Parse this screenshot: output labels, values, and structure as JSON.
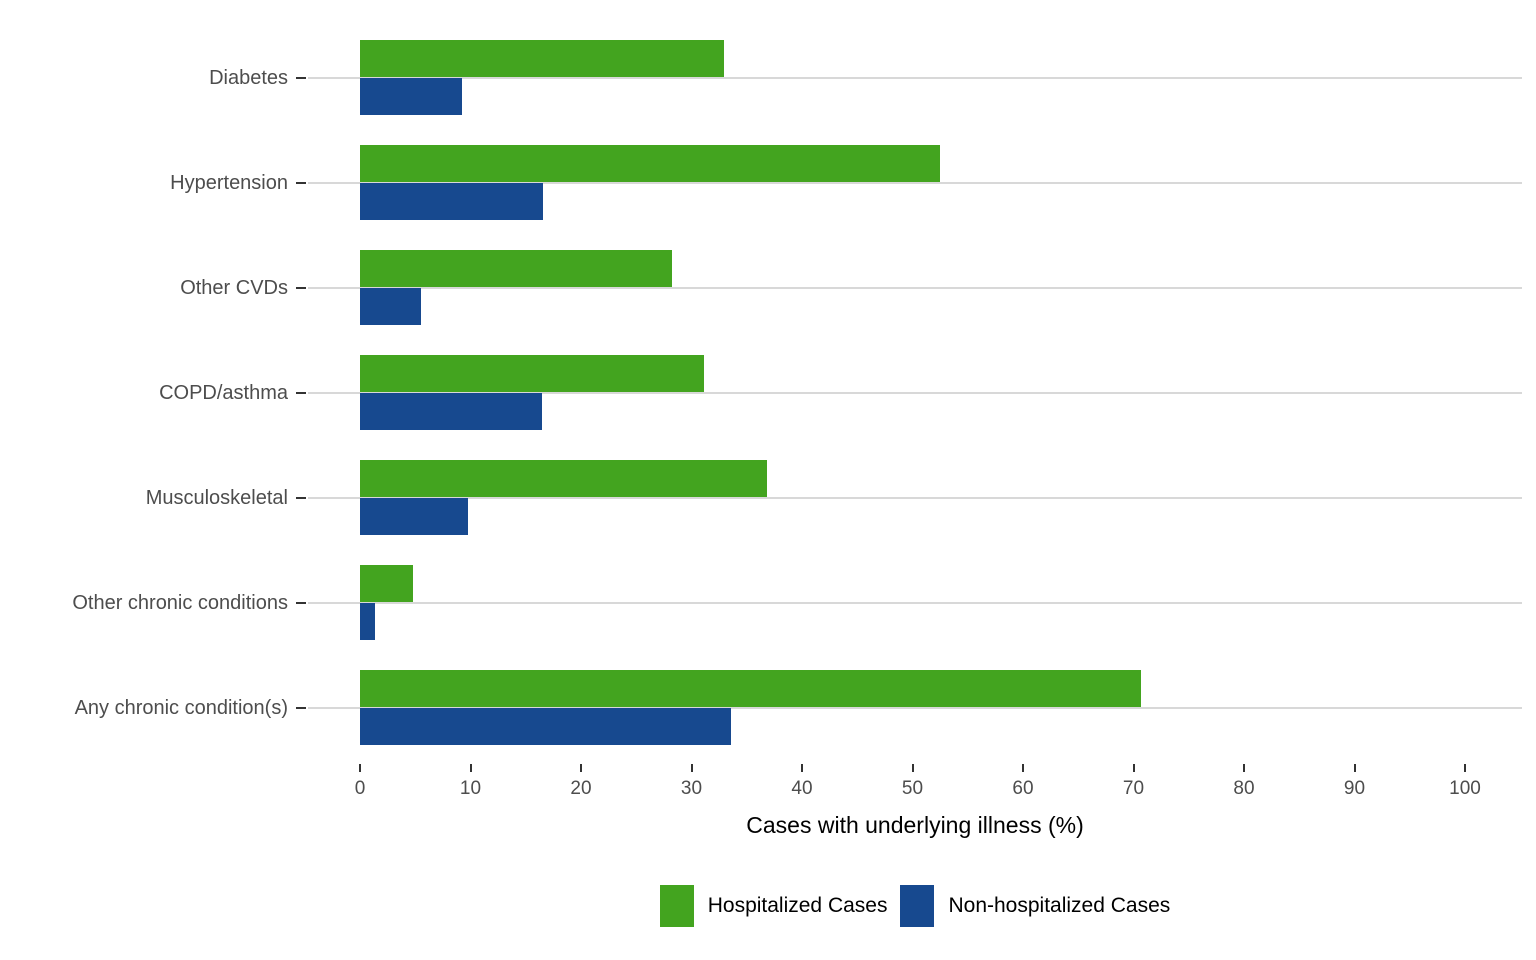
{
  "chart_data": {
    "type": "bar",
    "orientation": "horizontal",
    "title": "",
    "xlabel": "Cases with underlying illness (%)",
    "ylabel": "",
    "xlim": [
      0,
      105
    ],
    "x_ticks": [
      0,
      10,
      20,
      30,
      40,
      50,
      60,
      70,
      80,
      90,
      100
    ],
    "grid": "horizontal major gridlines only, light gray on white background",
    "legend_position": "bottom-center",
    "categories": [
      "Diabetes",
      "Hypertension",
      "Other CVDs",
      "COPD/asthma",
      "Musculoskeletal",
      "Other chronic conditions",
      "Any chronic condition(s)"
    ],
    "series": [
      {
        "name": "Hospitalized Cases",
        "color": "#43a41f",
        "values": [
          32.9,
          52.5,
          28.2,
          31.1,
          36.8,
          4.8,
          70.7
        ]
      },
      {
        "name": "Non-hospitalized Cases",
        "color": "#17498f",
        "values": [
          9.2,
          16.6,
          5.5,
          16.5,
          9.8,
          1.4,
          33.6
        ]
      }
    ]
  },
  "colors": {
    "grid": "#d8d8d8",
    "tick": "#333333",
    "axis_text": "#4d4d4d",
    "title_text": "#000000",
    "legend_text": "#000000",
    "background": "#ffffff"
  }
}
